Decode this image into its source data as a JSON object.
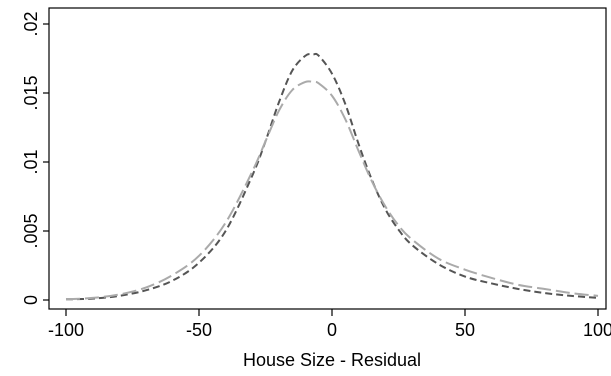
{
  "chart_data": {
    "type": "line",
    "title": "",
    "xlabel": "House Size - Residual",
    "ylabel": "",
    "xlim": [
      -100,
      100
    ],
    "ylim": [
      0,
      0.02
    ],
    "x_ticks": [
      -100,
      -50,
      0,
      50,
      100
    ],
    "x_tick_labels": [
      "-100",
      "-50",
      "0",
      "50",
      "100"
    ],
    "y_ticks": [
      0,
      0.005,
      0.01,
      0.015,
      0.02
    ],
    "y_tick_labels": [
      "0",
      ".005",
      ".01",
      ".015",
      ".02"
    ],
    "grid": false,
    "legend": "none",
    "series": [
      {
        "color": "#555555",
        "dash": "short",
        "x": [
          -100,
          -90,
          -80,
          -70,
          -60,
          -50,
          -40,
          -30,
          -25,
          -20,
          -15,
          -10,
          -7,
          -5,
          0,
          5,
          10,
          15,
          20,
          25,
          30,
          40,
          50,
          60,
          70,
          80,
          90,
          100
        ],
        "y": [
          5e-05,
          0.0001,
          0.0003,
          0.0007,
          0.0014,
          0.0027,
          0.005,
          0.009,
          0.0115,
          0.0143,
          0.0166,
          0.0177,
          0.0178,
          0.0177,
          0.0164,
          0.0142,
          0.0113,
          0.0087,
          0.0066,
          0.0051,
          0.004,
          0.0026,
          0.0017,
          0.0012,
          0.0008,
          0.0005,
          0.0003,
          0.00015
        ]
      },
      {
        "color": "#aaaaaa",
        "dash": "long",
        "x": [
          -100,
          -90,
          -80,
          -70,
          -60,
          -50,
          -40,
          -30,
          -25,
          -20,
          -15,
          -10,
          -7,
          -5,
          0,
          5,
          10,
          15,
          20,
          25,
          30,
          40,
          50,
          60,
          70,
          80,
          90,
          100
        ],
        "y": [
          5e-05,
          0.00015,
          0.0004,
          0.0009,
          0.0018,
          0.0032,
          0.0056,
          0.0093,
          0.0115,
          0.0137,
          0.0152,
          0.0158,
          0.0158,
          0.0157,
          0.0148,
          0.0131,
          0.0108,
          0.0086,
          0.0068,
          0.0054,
          0.0044,
          0.003,
          0.0022,
          0.0016,
          0.0011,
          0.0008,
          0.0005,
          0.0003
        ]
      }
    ]
  }
}
